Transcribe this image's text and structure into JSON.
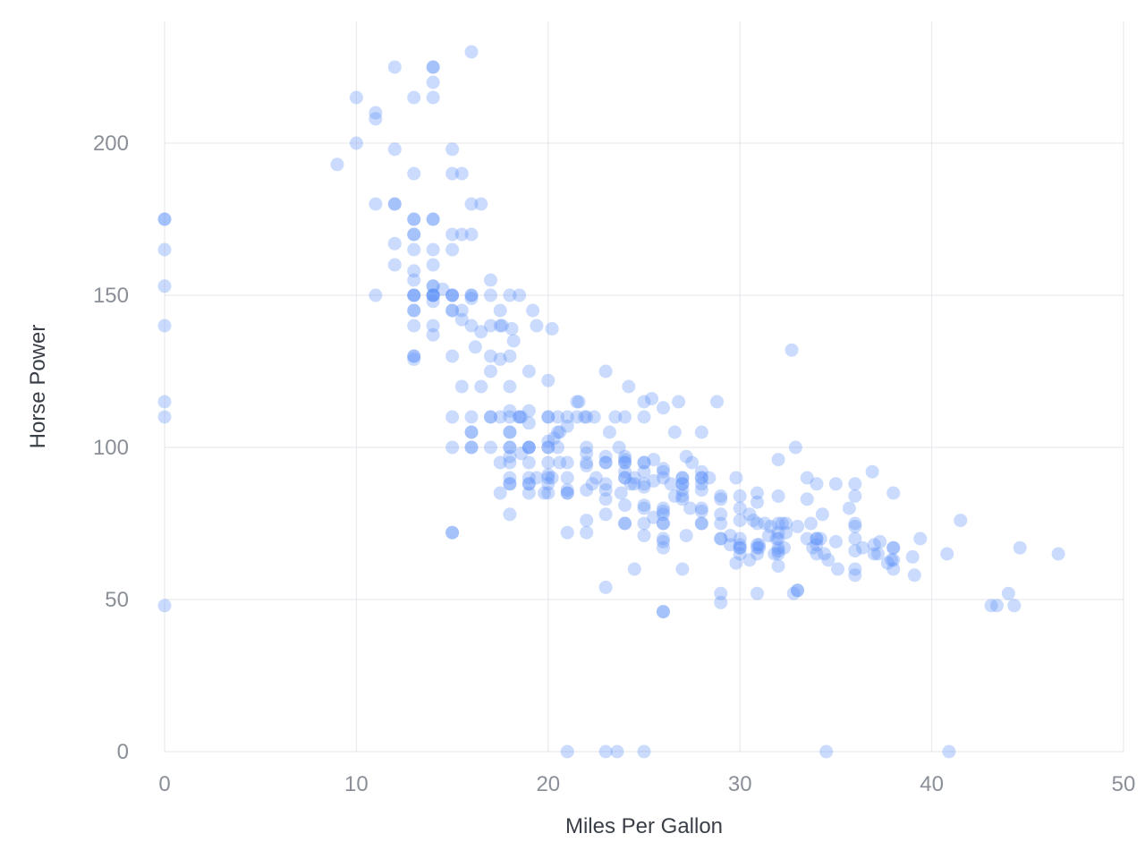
{
  "chart_data": {
    "type": "scatter",
    "title": "",
    "xlabel": "Miles Per Gallon",
    "ylabel": "Horse Power",
    "xlim": [
      0,
      50
    ],
    "ylim": [
      0,
      230
    ],
    "x_ticks": [
      "0",
      "10",
      "20",
      "30",
      "40",
      "50"
    ],
    "y_ticks": [
      "0",
      "50",
      "100",
      "150",
      "200"
    ],
    "grid": true,
    "legend": "none",
    "color": "#5b8ff9",
    "points": [
      [
        0,
        175
      ],
      [
        0,
        175
      ],
      [
        0,
        165
      ],
      [
        0,
        153
      ],
      [
        0,
        140
      ],
      [
        0,
        115
      ],
      [
        0,
        110
      ],
      [
        0,
        48
      ],
      [
        9,
        193
      ],
      [
        10,
        215
      ],
      [
        10,
        200
      ],
      [
        11,
        210
      ],
      [
        11,
        208
      ],
      [
        11,
        180
      ],
      [
        11,
        150
      ],
      [
        12,
        225
      ],
      [
        12,
        198
      ],
      [
        12,
        180
      ],
      [
        12,
        180
      ],
      [
        12,
        167
      ],
      [
        12,
        160
      ],
      [
        13,
        215
      ],
      [
        13,
        190
      ],
      [
        13,
        175
      ],
      [
        13,
        175
      ],
      [
        13,
        170
      ],
      [
        13,
        170
      ],
      [
        13,
        165
      ],
      [
        13,
        158
      ],
      [
        13,
        155
      ],
      [
        13,
        150
      ],
      [
        13,
        150
      ],
      [
        13,
        150
      ],
      [
        13,
        145
      ],
      [
        13,
        145
      ],
      [
        13,
        140
      ],
      [
        13,
        130
      ],
      [
        13,
        130
      ],
      [
        13,
        129
      ],
      [
        14,
        225
      ],
      [
        14,
        225
      ],
      [
        14,
        220
      ],
      [
        14,
        215
      ],
      [
        14,
        175
      ],
      [
        14,
        175
      ],
      [
        14,
        165
      ],
      [
        14,
        160
      ],
      [
        14,
        153
      ],
      [
        14,
        153
      ],
      [
        14,
        150
      ],
      [
        14,
        150
      ],
      [
        14,
        150
      ],
      [
        14,
        150
      ],
      [
        14,
        148
      ],
      [
        14,
        140
      ],
      [
        14,
        137
      ],
      [
        14.5,
        152
      ],
      [
        15,
        198
      ],
      [
        15,
        190
      ],
      [
        15,
        170
      ],
      [
        15,
        165
      ],
      [
        15,
        150
      ],
      [
        15,
        150
      ],
      [
        15,
        150
      ],
      [
        15,
        145
      ],
      [
        15,
        145
      ],
      [
        15,
        130
      ],
      [
        15,
        110
      ],
      [
        15,
        100
      ],
      [
        15,
        72
      ],
      [
        15,
        72
      ],
      [
        15.5,
        190
      ],
      [
        15.5,
        170
      ],
      [
        15.5,
        145
      ],
      [
        15.5,
        142
      ],
      [
        15.5,
        120
      ],
      [
        16,
        230
      ],
      [
        16,
        180
      ],
      [
        16,
        170
      ],
      [
        16,
        150
      ],
      [
        16,
        150
      ],
      [
        16,
        149
      ],
      [
        16,
        140
      ],
      [
        16,
        110
      ],
      [
        16,
        105
      ],
      [
        16,
        105
      ],
      [
        16,
        100
      ],
      [
        16,
        100
      ],
      [
        16.2,
        133
      ],
      [
        16.5,
        180
      ],
      [
        16.5,
        138
      ],
      [
        16.5,
        120
      ],
      [
        17,
        155
      ],
      [
        17,
        150
      ],
      [
        17,
        140
      ],
      [
        17,
        130
      ],
      [
        17,
        125
      ],
      [
        17,
        110
      ],
      [
        17,
        110
      ],
      [
        17,
        100
      ],
      [
        17.5,
        145
      ],
      [
        17.5,
        140
      ],
      [
        17.5,
        129
      ],
      [
        17.5,
        110
      ],
      [
        17.5,
        95
      ],
      [
        17.5,
        85
      ],
      [
        17.6,
        140
      ],
      [
        18,
        150
      ],
      [
        18,
        130
      ],
      [
        18,
        120
      ],
      [
        18,
        112
      ],
      [
        18,
        110
      ],
      [
        18,
        105
      ],
      [
        18,
        105
      ],
      [
        18,
        100
      ],
      [
        18,
        100
      ],
      [
        18,
        97
      ],
      [
        18,
        95
      ],
      [
        18,
        90
      ],
      [
        18,
        88
      ],
      [
        18,
        88
      ],
      [
        18,
        78
      ],
      [
        18.1,
        139
      ],
      [
        18.2,
        135
      ],
      [
        18.5,
        150
      ],
      [
        18.5,
        110
      ],
      [
        18.5,
        110
      ],
      [
        18.6,
        110
      ],
      [
        18.6,
        98
      ],
      [
        19,
        125
      ],
      [
        19,
        112
      ],
      [
        19,
        108
      ],
      [
        19,
        100
      ],
      [
        19,
        100
      ],
      [
        19,
        100
      ],
      [
        19,
        95
      ],
      [
        19,
        90
      ],
      [
        19,
        88
      ],
      [
        19,
        88
      ],
      [
        19,
        85
      ],
      [
        19.2,
        145
      ],
      [
        19.4,
        140
      ],
      [
        19.4,
        90
      ],
      [
        19.8,
        85
      ],
      [
        20,
        122
      ],
      [
        20,
        110
      ],
      [
        20,
        110
      ],
      [
        20,
        102
      ],
      [
        20,
        100
      ],
      [
        20,
        100
      ],
      [
        20,
        95
      ],
      [
        20,
        91
      ],
      [
        20,
        90
      ],
      [
        20,
        88
      ],
      [
        20,
        85
      ],
      [
        20.2,
        139
      ],
      [
        20.2,
        90
      ],
      [
        20.3,
        103
      ],
      [
        20.5,
        110
      ],
      [
        20.5,
        105
      ],
      [
        20.5,
        100
      ],
      [
        20.6,
        105
      ],
      [
        20.6,
        95
      ],
      [
        21,
        110
      ],
      [
        21,
        107
      ],
      [
        21,
        95
      ],
      [
        21,
        90
      ],
      [
        21,
        86
      ],
      [
        21,
        85
      ],
      [
        21,
        85
      ],
      [
        21,
        72
      ],
      [
        21.5,
        115
      ],
      [
        21.5,
        110
      ],
      [
        21.6,
        115
      ],
      [
        21.9,
        110
      ],
      [
        22,
        110
      ],
      [
        22,
        100
      ],
      [
        22,
        98
      ],
      [
        22,
        95
      ],
      [
        22,
        94
      ],
      [
        22,
        86
      ],
      [
        22,
        76
      ],
      [
        22,
        72
      ],
      [
        22.3,
        88
      ],
      [
        22.4,
        110
      ],
      [
        22.5,
        90
      ],
      [
        23,
        125
      ],
      [
        23,
        97
      ],
      [
        23,
        95
      ],
      [
        23,
        95
      ],
      [
        23,
        88
      ],
      [
        23,
        86
      ],
      [
        23,
        83
      ],
      [
        23,
        78
      ],
      [
        23,
        54
      ],
      [
        23.2,
        105
      ],
      [
        23.5,
        110
      ],
      [
        23.7,
        100
      ],
      [
        23.8,
        85
      ],
      [
        24,
        110
      ],
      [
        24,
        97
      ],
      [
        24,
        96
      ],
      [
        24,
        95
      ],
      [
        24,
        95
      ],
      [
        24,
        92
      ],
      [
        24,
        90
      ],
      [
        24,
        90
      ],
      [
        24,
        81
      ],
      [
        24,
        75
      ],
      [
        24,
        75
      ],
      [
        24.2,
        120
      ],
      [
        24.3,
        88
      ],
      [
        24.5,
        60
      ],
      [
        24.5,
        88
      ],
      [
        24.5,
        90
      ],
      [
        25,
        115
      ],
      [
        25,
        110
      ],
      [
        25,
        95
      ],
      [
        25,
        95
      ],
      [
        25,
        92
      ],
      [
        25,
        88
      ],
      [
        25,
        87
      ],
      [
        25,
        81
      ],
      [
        25,
        80
      ],
      [
        25,
        75
      ],
      [
        25,
        71
      ],
      [
        25.4,
        116
      ],
      [
        25.5,
        96
      ],
      [
        25.5,
        89
      ],
      [
        25.5,
        77
      ],
      [
        26,
        113
      ],
      [
        26,
        93
      ],
      [
        26,
        92
      ],
      [
        26,
        90
      ],
      [
        26,
        80
      ],
      [
        26,
        79
      ],
      [
        26,
        78
      ],
      [
        26,
        75
      ],
      [
        26,
        75
      ],
      [
        26,
        70
      ],
      [
        26,
        69
      ],
      [
        26,
        67
      ],
      [
        26,
        46
      ],
      [
        26,
        46
      ],
      [
        26.4,
        88
      ],
      [
        26.6,
        105
      ],
      [
        26.6,
        84
      ],
      [
        26.8,
        115
      ],
      [
        27,
        90
      ],
      [
        27,
        90
      ],
      [
        27,
        88
      ],
      [
        27,
        88
      ],
      [
        27,
        86
      ],
      [
        27,
        84
      ],
      [
        27,
        83
      ],
      [
        27,
        60
      ],
      [
        27.2,
        97
      ],
      [
        27.2,
        71
      ],
      [
        27.4,
        80
      ],
      [
        27.5,
        95
      ],
      [
        28,
        105
      ],
      [
        28,
        92
      ],
      [
        28,
        90
      ],
      [
        28,
        90
      ],
      [
        28,
        88
      ],
      [
        28,
        86
      ],
      [
        28,
        80
      ],
      [
        28,
        79
      ],
      [
        28,
        75
      ],
      [
        28,
        75
      ],
      [
        28.4,
        90
      ],
      [
        28.8,
        115
      ],
      [
        29,
        84
      ],
      [
        29,
        83
      ],
      [
        29,
        78
      ],
      [
        29,
        75
      ],
      [
        29,
        70
      ],
      [
        29,
        70
      ],
      [
        29,
        52
      ],
      [
        29,
        49
      ],
      [
        29.5,
        71
      ],
      [
        29.5,
        68
      ],
      [
        29.8,
        90
      ],
      [
        29.8,
        62
      ],
      [
        30,
        84
      ],
      [
        30,
        80
      ],
      [
        30,
        76
      ],
      [
        30,
        70
      ],
      [
        30,
        68
      ],
      [
        30,
        67
      ],
      [
        30,
        67
      ],
      [
        30,
        65
      ],
      [
        30.5,
        78
      ],
      [
        30.5,
        63
      ],
      [
        30.7,
        76
      ],
      [
        30.9,
        85
      ],
      [
        30.9,
        82
      ],
      [
        30.9,
        75
      ],
      [
        30.9,
        68
      ],
      [
        30.9,
        67
      ],
      [
        30.9,
        65
      ],
      [
        30.9,
        52
      ],
      [
        31,
        68
      ],
      [
        31,
        67
      ],
      [
        31.3,
        75
      ],
      [
        31.5,
        71
      ],
      [
        31.6,
        74
      ],
      [
        31.8,
        65
      ],
      [
        31.9,
        70
      ],
      [
        32,
        96
      ],
      [
        32,
        84
      ],
      [
        32,
        75
      ],
      [
        32,
        72
      ],
      [
        32,
        70
      ],
      [
        32,
        67
      ],
      [
        32,
        66
      ],
      [
        32,
        65
      ],
      [
        32,
        61
      ],
      [
        32.2,
        75
      ],
      [
        32.3,
        67
      ],
      [
        32.4,
        75
      ],
      [
        32.4,
        72
      ],
      [
        32.7,
        132
      ],
      [
        32.8,
        52
      ],
      [
        32.9,
        100
      ],
      [
        33,
        53
      ],
      [
        33,
        53
      ],
      [
        33,
        74
      ],
      [
        33.5,
        90
      ],
      [
        33.5,
        83
      ],
      [
        33.5,
        70
      ],
      [
        33.7,
        75
      ],
      [
        33.8,
        67
      ],
      [
        34,
        88
      ],
      [
        34,
        70
      ],
      [
        34,
        70
      ],
      [
        34,
        68
      ],
      [
        34,
        65
      ],
      [
        34.2,
        70
      ],
      [
        34.3,
        78
      ],
      [
        34.4,
        65
      ],
      [
        34.5,
        0
      ],
      [
        34.6,
        63
      ],
      [
        35,
        88
      ],
      [
        35,
        69
      ],
      [
        35.1,
        60
      ],
      [
        35.7,
        80
      ],
      [
        36,
        88
      ],
      [
        36,
        84
      ],
      [
        36,
        75
      ],
      [
        36,
        74
      ],
      [
        36,
        70
      ],
      [
        36,
        66
      ],
      [
        36,
        60
      ],
      [
        36,
        58
      ],
      [
        36.4,
        67
      ],
      [
        36.9,
        92
      ],
      [
        37,
        68
      ],
      [
        37,
        65
      ],
      [
        37.2,
        65
      ],
      [
        37.3,
        69
      ],
      [
        37.7,
        62
      ],
      [
        37.9,
        63
      ],
      [
        38,
        85
      ],
      [
        38,
        67
      ],
      [
        38,
        67
      ],
      [
        38,
        63
      ],
      [
        38,
        60
      ],
      [
        39,
        64
      ],
      [
        39.1,
        58
      ],
      [
        39.4,
        70
      ],
      [
        40.8,
        65
      ],
      [
        40.9,
        0
      ],
      [
        41.5,
        76
      ],
      [
        43.1,
        48
      ],
      [
        43.4,
        48
      ],
      [
        44,
        52
      ],
      [
        44.3,
        48
      ],
      [
        44.6,
        67
      ],
      [
        46.6,
        65
      ],
      [
        21,
        0
      ],
      [
        23,
        0
      ],
      [
        23.6,
        0
      ],
      [
        25,
        0
      ]
    ]
  }
}
